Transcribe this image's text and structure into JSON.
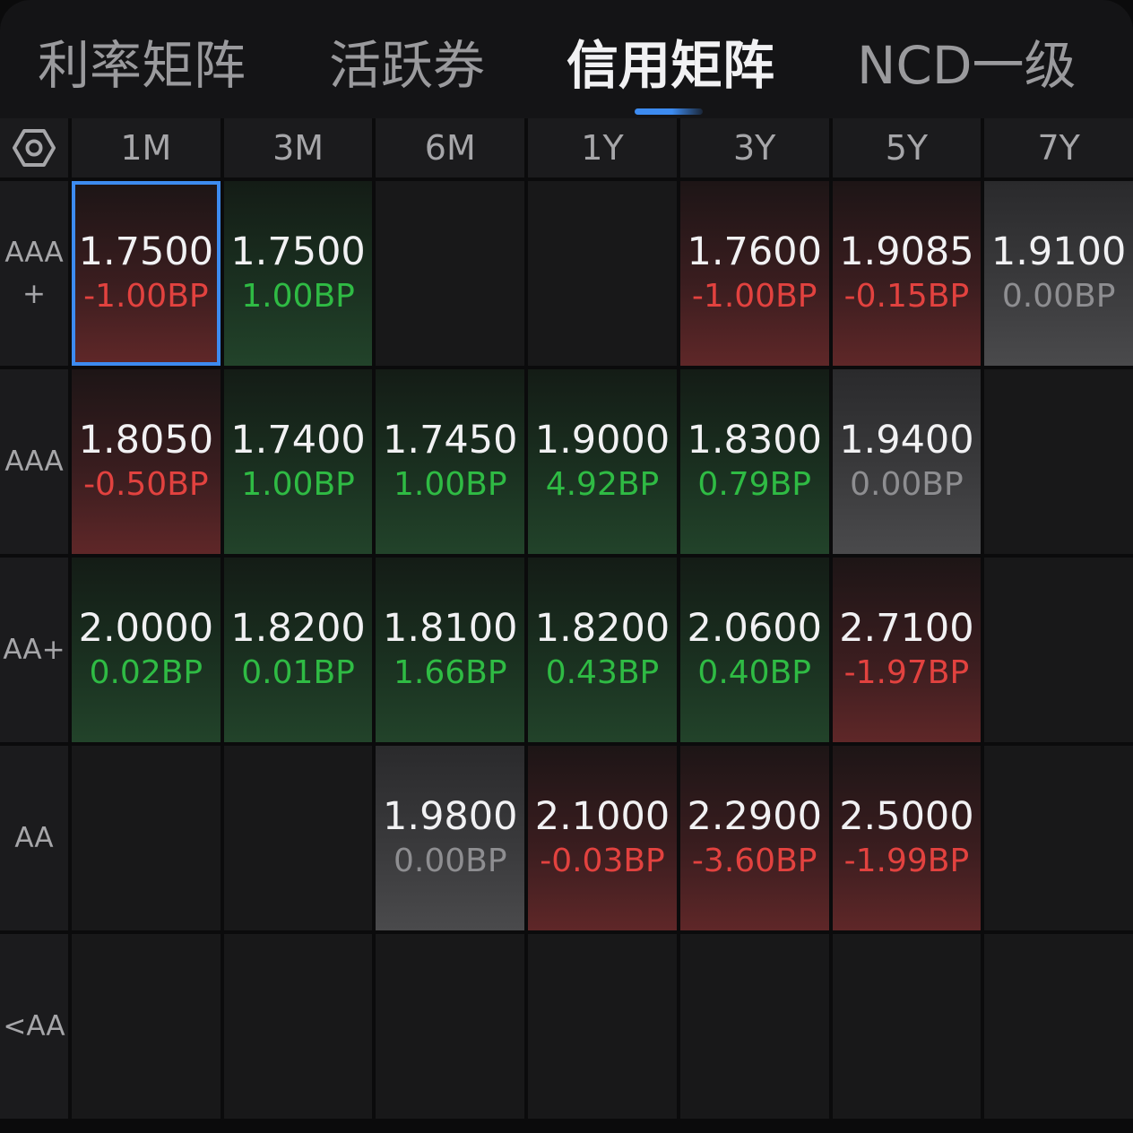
{
  "tabs": [
    {
      "label": "利率矩阵",
      "active": false
    },
    {
      "label": "活跃券",
      "active": false
    },
    {
      "label": "信用矩阵",
      "active": true
    },
    {
      "label": "NCD一级",
      "active": false
    }
  ],
  "settings_icon": "hexagon-gear-icon",
  "columns": [
    "1M",
    "3M",
    "6M",
    "1Y",
    "3Y",
    "5Y",
    "7Y"
  ],
  "colors": {
    "up": "#e2423f",
    "down": "#2fbb44",
    "flat": "#8e8e91",
    "accent": "#3d8bf0"
  },
  "rows": [
    {
      "label": "AAA\n+",
      "cells": [
        {
          "value": "1.7500",
          "change": "-1.00BP",
          "tone": "red",
          "selected": true
        },
        {
          "value": "1.7500",
          "change": "1.00BP",
          "tone": "green"
        },
        {
          "value": "",
          "change": "",
          "tone": "empty"
        },
        {
          "value": "",
          "change": "",
          "tone": "empty"
        },
        {
          "value": "1.7600",
          "change": "-1.00BP",
          "tone": "red"
        },
        {
          "value": "1.9085",
          "change": "-0.15BP",
          "tone": "red"
        },
        {
          "value": "1.9100",
          "change": "0.00BP",
          "tone": "gray"
        }
      ]
    },
    {
      "label": "AAA",
      "cells": [
        {
          "value": "1.8050",
          "change": "-0.50BP",
          "tone": "red"
        },
        {
          "value": "1.7400",
          "change": "1.00BP",
          "tone": "green"
        },
        {
          "value": "1.7450",
          "change": "1.00BP",
          "tone": "green"
        },
        {
          "value": "1.9000",
          "change": "4.92BP",
          "tone": "green"
        },
        {
          "value": "1.8300",
          "change": "0.79BP",
          "tone": "green"
        },
        {
          "value": "1.9400",
          "change": "0.00BP",
          "tone": "gray"
        },
        {
          "value": "",
          "change": "",
          "tone": "empty"
        }
      ]
    },
    {
      "label": "AA+",
      "cells": [
        {
          "value": "2.0000",
          "change": "0.02BP",
          "tone": "green"
        },
        {
          "value": "1.8200",
          "change": "0.01BP",
          "tone": "green"
        },
        {
          "value": "1.8100",
          "change": "1.66BP",
          "tone": "green"
        },
        {
          "value": "1.8200",
          "change": "0.43BP",
          "tone": "green"
        },
        {
          "value": "2.0600",
          "change": "0.40BP",
          "tone": "green"
        },
        {
          "value": "2.7100",
          "change": "-1.97BP",
          "tone": "red"
        },
        {
          "value": "",
          "change": "",
          "tone": "empty"
        }
      ]
    },
    {
      "label": "AA",
      "cells": [
        {
          "value": "",
          "change": "",
          "tone": "empty"
        },
        {
          "value": "",
          "change": "",
          "tone": "empty"
        },
        {
          "value": "1.9800",
          "change": "0.00BP",
          "tone": "gray"
        },
        {
          "value": "2.1000",
          "change": "-0.03BP",
          "tone": "red"
        },
        {
          "value": "2.2900",
          "change": "-3.60BP",
          "tone": "red"
        },
        {
          "value": "2.5000",
          "change": "-1.99BP",
          "tone": "red"
        },
        {
          "value": "",
          "change": "",
          "tone": "empty"
        }
      ]
    },
    {
      "label": "<AA",
      "cells": [
        {
          "value": "",
          "change": "",
          "tone": "empty"
        },
        {
          "value": "",
          "change": "",
          "tone": "empty"
        },
        {
          "value": "",
          "change": "",
          "tone": "empty"
        },
        {
          "value": "",
          "change": "",
          "tone": "empty"
        },
        {
          "value": "",
          "change": "",
          "tone": "empty"
        },
        {
          "value": "",
          "change": "",
          "tone": "empty"
        },
        {
          "value": "",
          "change": "",
          "tone": "empty"
        }
      ]
    }
  ]
}
